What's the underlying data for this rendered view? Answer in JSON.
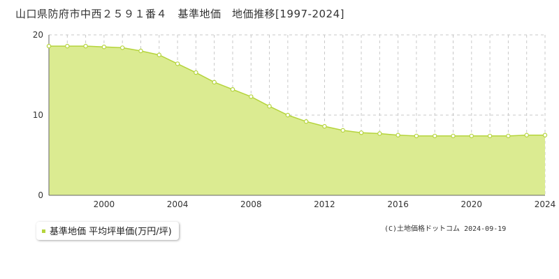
{
  "title": "山口県防府市中西２５９１番４　基準地価　地価推移[1997-2024]",
  "copyright": "(C)土地価格ドットコム 2024-09-19",
  "colors": {
    "fill": "#dbeb91",
    "line": "#b5d43c",
    "point_fill": "#ffffff",
    "grid": "#c8c8c8",
    "axis": "#666666",
    "legend_swatch": "#b5d43c"
  },
  "chart_data": {
    "type": "area",
    "title": "山口県防府市中西２５９１番４　基準地価　地価推移[1997-2024]",
    "xlabel": "",
    "ylabel": "",
    "xlim": [
      1997,
      2024
    ],
    "ylim": [
      0,
      20
    ],
    "x_ticks": [
      2000,
      2004,
      2008,
      2012,
      2016,
      2020,
      2024
    ],
    "y_ticks": [
      0,
      10,
      20
    ],
    "grid": true,
    "legend": "bottom-left",
    "x": [
      1997,
      1998,
      1999,
      2000,
      2001,
      2002,
      2003,
      2004,
      2005,
      2006,
      2007,
      2008,
      2009,
      2010,
      2011,
      2012,
      2013,
      2014,
      2015,
      2016,
      2017,
      2018,
      2019,
      2020,
      2021,
      2022,
      2023,
      2024
    ],
    "series": [
      {
        "name": "基準地価 平均坪単価(万円/坪)",
        "values": [
          18.6,
          18.6,
          18.6,
          18.5,
          18.4,
          18.0,
          17.5,
          16.4,
          15.3,
          14.1,
          13.2,
          12.3,
          11.1,
          10.0,
          9.2,
          8.6,
          8.1,
          7.8,
          7.7,
          7.5,
          7.4,
          7.4,
          7.4,
          7.4,
          7.4,
          7.4,
          7.5,
          7.5
        ]
      }
    ]
  }
}
